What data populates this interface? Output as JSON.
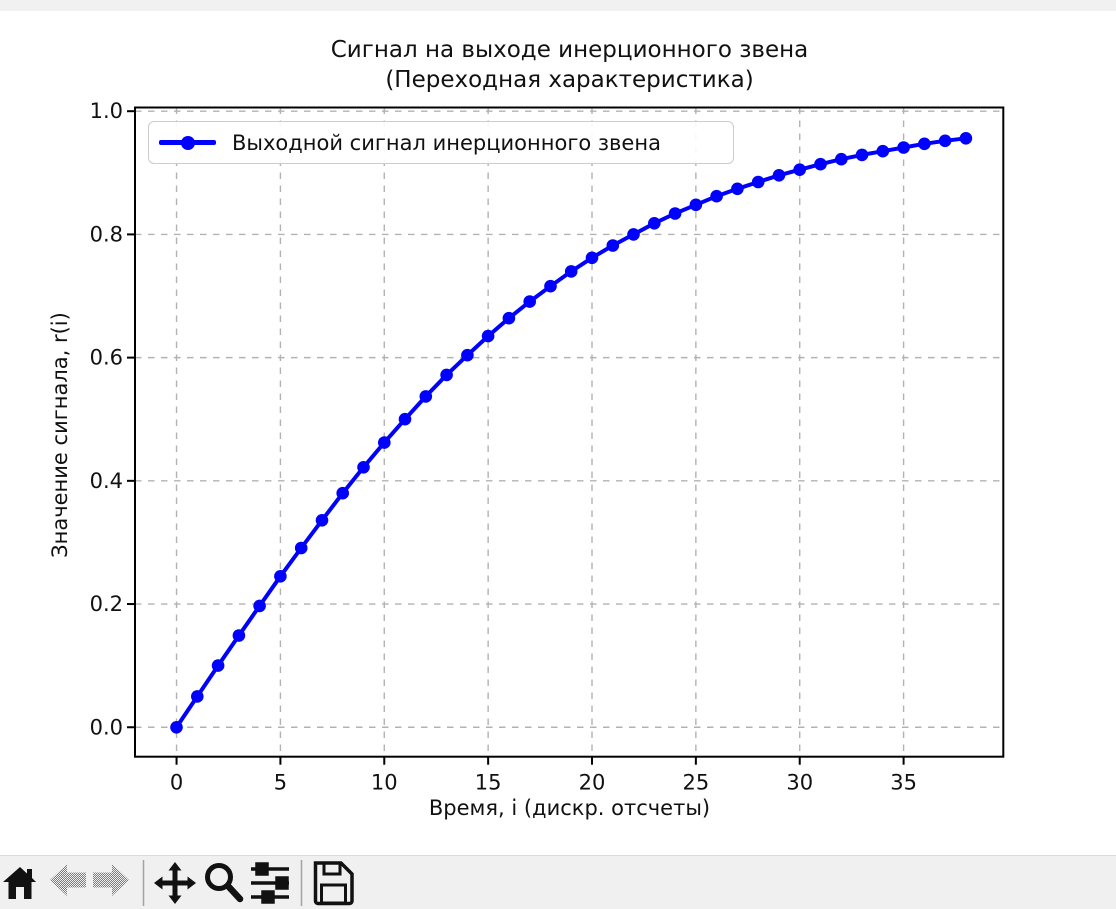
{
  "window": {
    "background": "#ffffff",
    "top_strip_color": "#f1f1f1"
  },
  "chart_data": {
    "type": "line",
    "title": "Сигнал на выходе инерционного звена (Переходная характеристика)",
    "title_lines": [
      "Сигнал на выходе инерционного звена",
      "(Переходная характеристика)"
    ],
    "xlabel": "Время, i (дискр. отсчеты)",
    "ylabel": "Значение сигнала, r(i)",
    "legend": {
      "position": "upper left",
      "entries": [
        {
          "label": "Выходной сигнал инерционного звена",
          "color": "#0000ff",
          "marker": "circle",
          "line_style": "solid"
        }
      ]
    },
    "grid": {
      "visible": true,
      "style": "dashed",
      "color": "#b2b2b2"
    },
    "x_ticks": {
      "values": [
        0,
        5,
        10,
        15,
        20,
        25,
        30,
        35
      ],
      "labels": [
        "0",
        "5",
        "10",
        "15",
        "20",
        "25",
        "30",
        "35"
      ]
    },
    "y_ticks": {
      "values": [
        0.0,
        0.2,
        0.4,
        0.6,
        0.8,
        1.0
      ],
      "labels": [
        "0.0",
        "0.2",
        "0.4",
        "0.6",
        "0.8",
        "1.0"
      ]
    },
    "xlim": [
      -2.0,
      39.8
    ],
    "ylim": [
      -0.0478,
      1.006
    ],
    "series": [
      {
        "name": "Выходной сигнал инерционного звена",
        "color": "#0000ff",
        "marker": "o",
        "line_width": 4,
        "x": [
          0,
          1,
          2,
          3,
          4,
          5,
          6,
          7,
          8,
          9,
          10,
          11,
          12,
          13,
          14,
          15,
          16,
          17,
          18,
          19,
          20,
          21,
          22,
          23,
          24,
          25,
          26,
          27,
          28,
          29,
          30,
          31,
          32,
          33,
          34,
          35,
          36,
          37,
          38
        ],
        "y": [
          0.0,
          0.05,
          0.1,
          0.149,
          0.197,
          0.245,
          0.291,
          0.336,
          0.38,
          0.422,
          0.462,
          0.5,
          0.537,
          0.572,
          0.604,
          0.635,
          0.664,
          0.691,
          0.716,
          0.74,
          0.762,
          0.782,
          0.8,
          0.818,
          0.834,
          0.848,
          0.862,
          0.874,
          0.885,
          0.896,
          0.905,
          0.914,
          0.922,
          0.929,
          0.935,
          0.941,
          0.947,
          0.952,
          0.956
        ]
      }
    ]
  },
  "toolbar": {
    "background": "#f0f0f0",
    "buttons": [
      {
        "name": "home",
        "icon": "home-icon",
        "enabled": true
      },
      {
        "name": "back",
        "icon": "arrow-left-icon",
        "enabled": false
      },
      {
        "name": "forward",
        "icon": "arrow-right-icon",
        "enabled": false
      },
      {
        "name": "pan",
        "icon": "move-cross-icon",
        "enabled": true
      },
      {
        "name": "zoom",
        "icon": "magnifier-icon",
        "enabled": true
      },
      {
        "name": "configure-subplots",
        "icon": "sliders-icon",
        "enabled": true
      },
      {
        "name": "save",
        "icon": "floppy-disk-icon",
        "enabled": true
      }
    ]
  }
}
